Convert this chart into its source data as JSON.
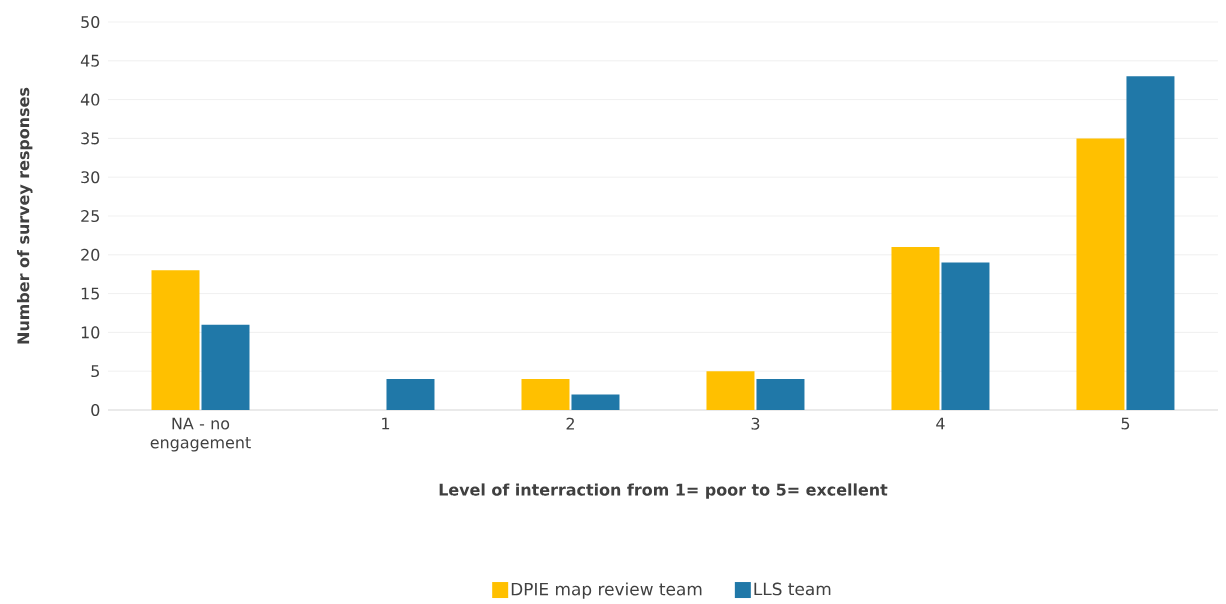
{
  "chart_data": {
    "type": "bar",
    "xlabel": "Level of interraction from 1= poor to 5= excellent",
    "ylabel": "Number of survey responses",
    "categories": [
      "NA - no engagement",
      "1",
      "2",
      "3",
      "4",
      "5"
    ],
    "series": [
      {
        "name": "DPIE map review team",
        "color": "#ffc000",
        "values": [
          18,
          0,
          4,
          5,
          21,
          35
        ]
      },
      {
        "name": "LLS team",
        "color": "#2078a8",
        "values": [
          11,
          4,
          2,
          4,
          19,
          43
        ]
      }
    ],
    "ylim": [
      0,
      50
    ],
    "yticks": [
      0,
      5,
      10,
      15,
      20,
      25,
      30,
      35,
      40,
      45,
      50
    ],
    "grid": "y",
    "legend": "bottom"
  }
}
